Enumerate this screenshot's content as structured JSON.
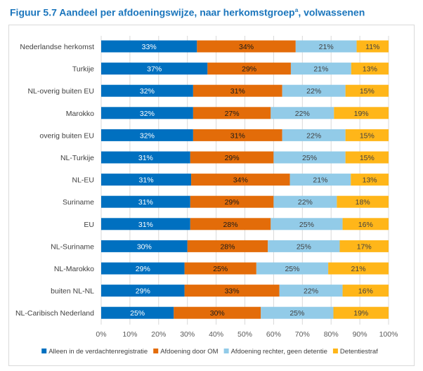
{
  "chart_data": {
    "type": "bar",
    "orientation": "horizontal",
    "stacked": true,
    "title": "Figuur 5.7  Aandeel per afdoeningswijze, naar herkomstgroep",
    "title_superscript": "a",
    "title_suffix": ", volwassenen",
    "categories": [
      "Nederlandse herkomst",
      "Turkije",
      "NL-overig buiten EU",
      "Marokko",
      "overig buiten EU",
      "NL-Turkije",
      "NL-EU",
      "Suriname",
      "EU",
      "NL-Suriname",
      "NL-Marokko",
      "buiten NL-NL",
      "NL-Caribisch Nederland"
    ],
    "series": [
      {
        "name": "Alleen in de verdachtenregistratie",
        "color": "#0070c0",
        "label_color": "#ffffff",
        "values": [
          33,
          37,
          32,
          32,
          32,
          31,
          31,
          31,
          31,
          30,
          29,
          29,
          25
        ]
      },
      {
        "name": "Afdoening door OM",
        "color": "#e36c09",
        "label_color": "#1a1a1a",
        "values": [
          34,
          29,
          31,
          27,
          31,
          29,
          34,
          29,
          28,
          28,
          25,
          33,
          30
        ]
      },
      {
        "name": "Afdoening rechter, geen detentie",
        "color": "#92cbe8",
        "label_color": "#404040",
        "values": [
          21,
          21,
          22,
          22,
          22,
          25,
          21,
          22,
          25,
          25,
          25,
          22,
          25
        ]
      },
      {
        "name": "Detentiestraf",
        "color": "#ffb619",
        "label_color": "#404040",
        "values": [
          11,
          13,
          15,
          19,
          15,
          15,
          13,
          18,
          16,
          17,
          21,
          16,
          19
        ]
      }
    ],
    "value_suffix": "%",
    "xlim": [
      0,
      100
    ],
    "xticks": [
      "0%",
      "10%",
      "20%",
      "30%",
      "40%",
      "50%",
      "60%",
      "70%",
      "80%",
      "90%",
      "100%"
    ],
    "grid": true,
    "legend_position": "bottom"
  }
}
